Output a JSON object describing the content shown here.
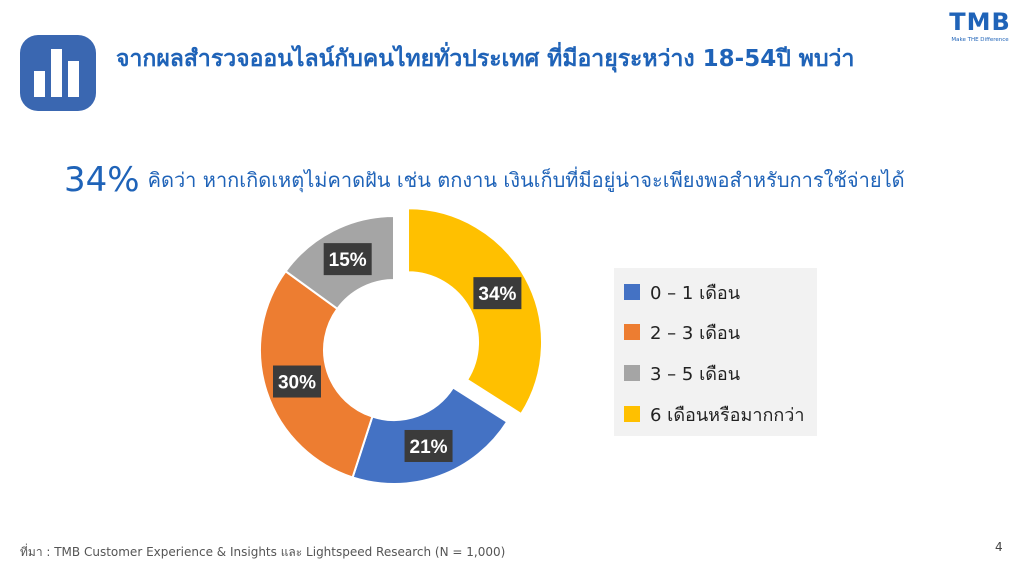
{
  "header": {
    "title": "จากผลสำรวจออนไลน์กับคนไทยทั่วประเทศ ที่มีอายุระหว่าง 18-54ปี พบว่า"
  },
  "logo": {
    "word": "TMB",
    "tagline": "Make THE Difference"
  },
  "headline": {
    "percent": "34%",
    "text": "คิดว่า หากเกิดเหตุไม่คาดฝัน เช่น ตกงาน เงินเก็บที่มีอยู่น่าจะเพียงพอสำหรับการใช้จ่ายได้"
  },
  "chart_data": {
    "type": "pie",
    "donut": true,
    "exploded_category": "6 เดือนหรือมากกว่า",
    "categories": [
      "0 – 1 เดือน",
      "2 – 3 เดือน",
      "3 – 5 เดือน",
      "6 เดือนหรือมากกว่า"
    ],
    "values": [
      21,
      30,
      15,
      34
    ],
    "labels": [
      "21%",
      "30%",
      "15%",
      "34%"
    ],
    "colors": [
      "#4472c4",
      "#ed7d31",
      "#a5a5a5",
      "#ffc000"
    ],
    "legend_position": "right"
  },
  "footer": {
    "source": "ที่มา : TMB Customer Experience & Insights และ Lightspeed Research (N = 1,000)",
    "page": "4"
  }
}
